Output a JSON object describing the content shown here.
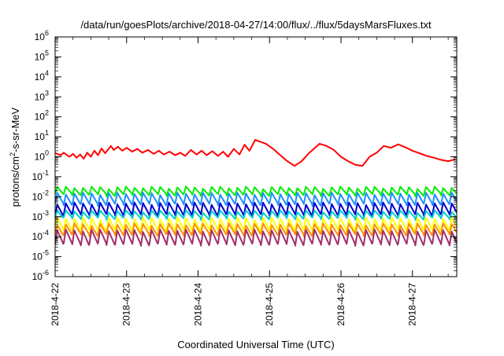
{
  "chart_data": {
    "type": "line",
    "title": "/data/run/goesPlots/archive/2018-04-27/14:00/flux/../flux/5daysMarsFluxes.txt",
    "xlabel": "Coordinated Universal Time (UTC)",
    "ylabel_main": "protons/cm",
    "ylabel_sup": "2",
    "ylabel_rest": "-s-sr-MeV",
    "y_scale": "log",
    "ylim": [
      1e-06,
      1000000.0
    ],
    "y_ticks": [
      {
        "mant": "10",
        "exp": "-6",
        "value": -6
      },
      {
        "mant": "10",
        "exp": "-5",
        "value": -5
      },
      {
        "mant": "10",
        "exp": "-4",
        "value": -4
      },
      {
        "mant": "10",
        "exp": "-3",
        "value": -3
      },
      {
        "mant": "10",
        "exp": "-2",
        "value": -2
      },
      {
        "mant": "10",
        "exp": "-1",
        "value": -1
      },
      {
        "mant": "10",
        "exp": "0",
        "value": 0
      },
      {
        "mant": "10",
        "exp": "1",
        "value": 1
      },
      {
        "mant": "10",
        "exp": "2",
        "value": 2
      },
      {
        "mant": "10",
        "exp": "3",
        "value": 3
      },
      {
        "mant": "10",
        "exp": "4",
        "value": 4
      },
      {
        "mant": "10",
        "exp": "5",
        "value": 5
      },
      {
        "mant": "10",
        "exp": "6",
        "value": 6
      }
    ],
    "x_range_days": [
      0,
      5.62
    ],
    "x_ticks": [
      {
        "label": "2018-4-22",
        "day": 0
      },
      {
        "label": "2018-4-23",
        "day": 1
      },
      {
        "label": "2018-4-24",
        "day": 2
      },
      {
        "label": "2018-4-25",
        "day": 3
      },
      {
        "label": "2018-4-26",
        "day": 4
      },
      {
        "label": "2018-4-27",
        "day": 5
      }
    ],
    "grid": false,
    "legend": "none",
    "series": [
      {
        "color": "#ff0000",
        "x": [
          0.0,
          0.08,
          0.12,
          0.2,
          0.25,
          0.3,
          0.35,
          0.4,
          0.45,
          0.5,
          0.55,
          0.6,
          0.65,
          0.7,
          0.78,
          0.82,
          0.88,
          0.94,
          1.0,
          1.08,
          1.15,
          1.22,
          1.3,
          1.38,
          1.45,
          1.52,
          1.6,
          1.68,
          1.75,
          1.82,
          1.9,
          1.98,
          2.05,
          2.12,
          2.2,
          2.28,
          2.35,
          2.42,
          2.5,
          2.58,
          2.65,
          2.72,
          2.8,
          2.88,
          2.95,
          3.05,
          3.15,
          3.25,
          3.35,
          3.45,
          3.55,
          3.62,
          3.7,
          3.8,
          3.9,
          4.0,
          4.1,
          4.2,
          4.3,
          4.4,
          4.5,
          4.6,
          4.7,
          4.8,
          4.9,
          5.0,
          5.1,
          5.2,
          5.3,
          5.4,
          5.5,
          5.6
        ],
        "y": [
          1.5,
          1.2,
          1.6,
          1.0,
          1.4,
          0.9,
          1.3,
          0.8,
          1.6,
          1.0,
          2.0,
          1.2,
          2.6,
          1.5,
          3.5,
          2.2,
          3.2,
          2.0,
          2.8,
          1.8,
          2.5,
          1.6,
          2.2,
          1.4,
          2.0,
          1.3,
          1.8,
          1.2,
          1.6,
          1.1,
          2.2,
          1.3,
          2.0,
          1.2,
          1.9,
          1.1,
          1.8,
          1.0,
          2.5,
          1.3,
          4.0,
          2.0,
          7.0,
          5.5,
          4.5,
          2.5,
          1.2,
          0.6,
          0.35,
          0.6,
          1.5,
          2.5,
          4.5,
          3.5,
          2.2,
          1.0,
          0.6,
          0.4,
          0.35,
          1.0,
          1.6,
          3.5,
          2.8,
          4.2,
          3.0,
          2.0,
          1.5,
          1.1,
          0.9,
          0.7,
          0.6,
          0.75
        ]
      },
      {
        "color": "#00ee00",
        "base": 0.012,
        "amp": 0.028
      },
      {
        "color": "#1e90ff",
        "base": 0.004,
        "amp": 0.014
      },
      {
        "color": "#0000cc",
        "base": 0.0012,
        "amp": 0.0045
      },
      {
        "color": "#00cccc",
        "base": 0.0008,
        "amp": 0.0018
      },
      {
        "color": "#ffff00",
        "base": 0.0002,
        "amp": 0.0008
      },
      {
        "color": "#ff8c00",
        "base": 0.00012,
        "amp": 0.0004
      },
      {
        "color": "#a0306a",
        "base": 4e-05,
        "amp": 0.0002
      }
    ]
  }
}
